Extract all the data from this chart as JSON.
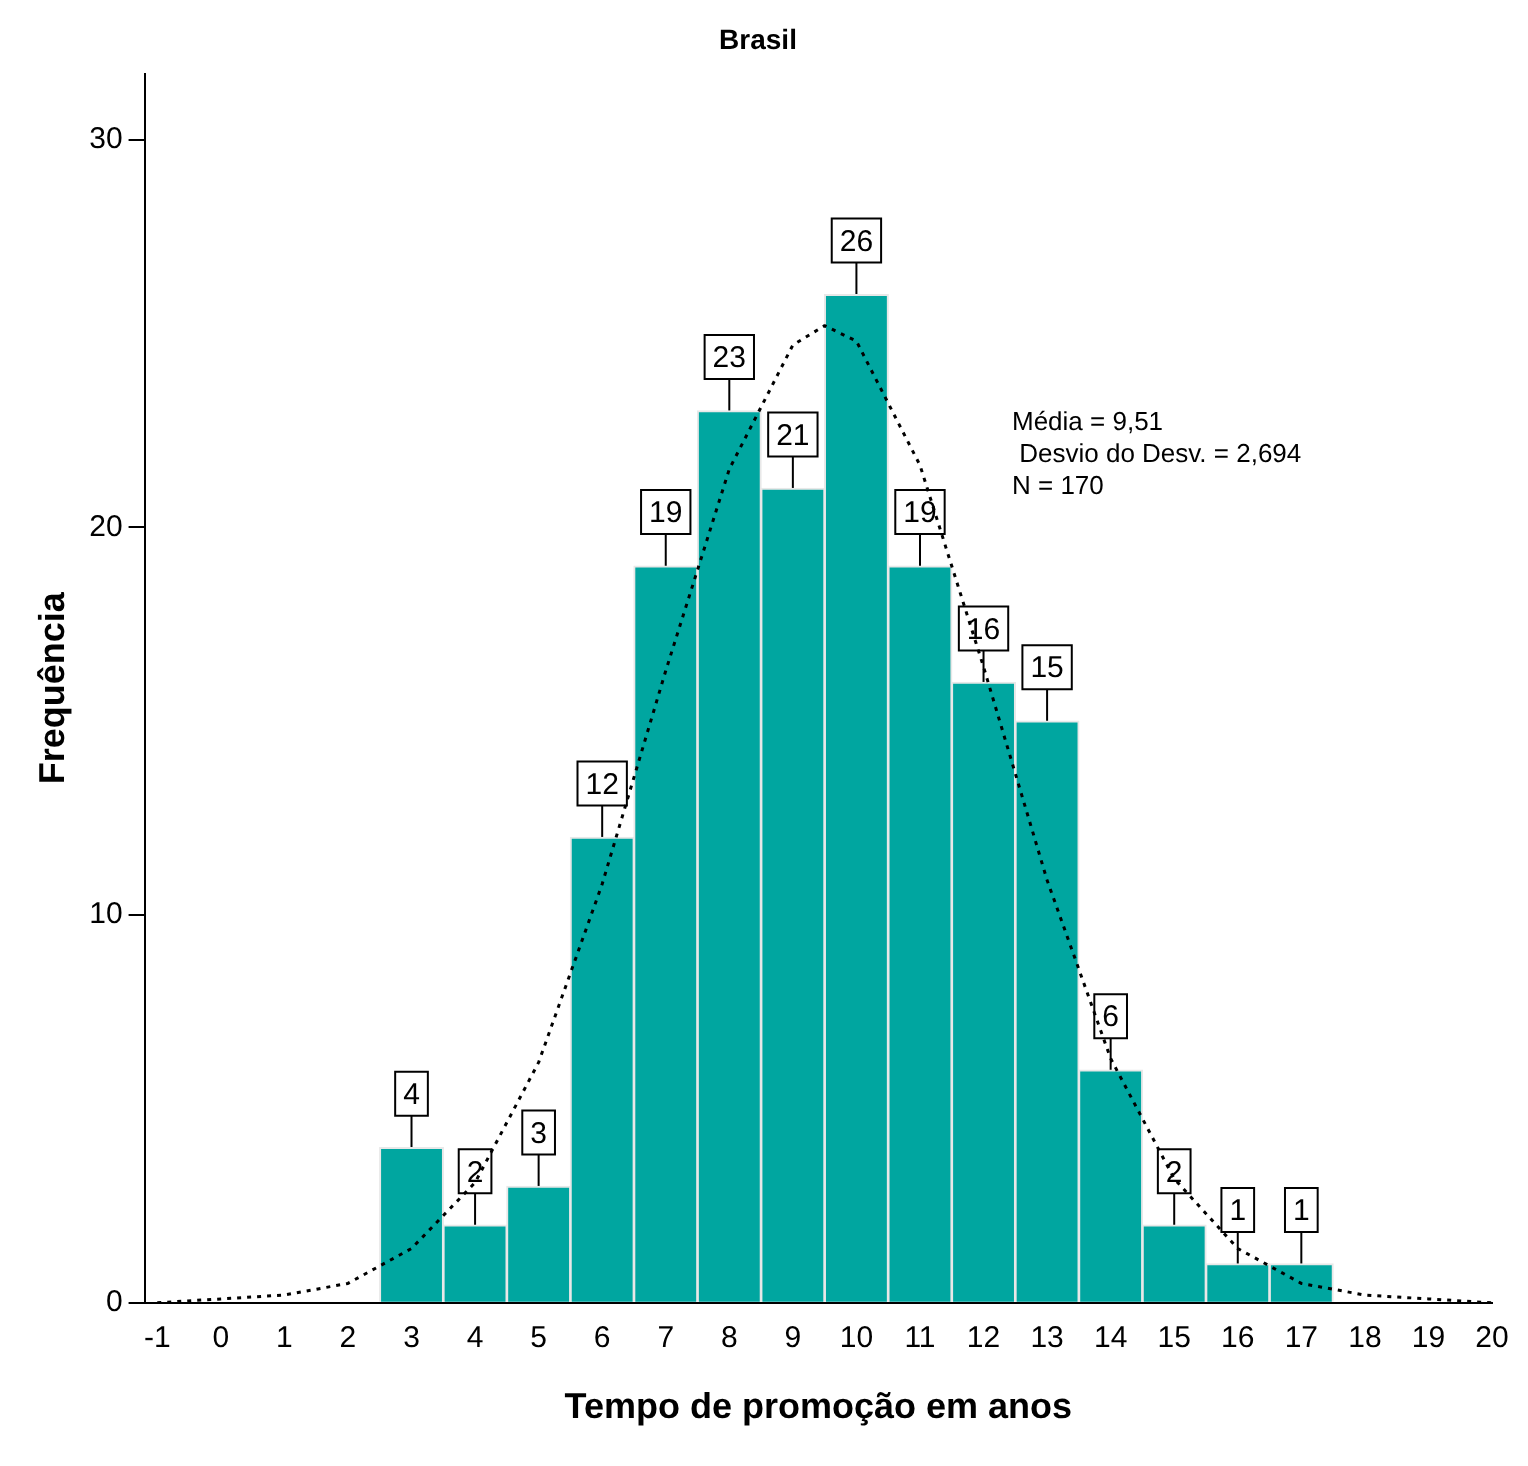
{
  "chart_data": {
    "type": "histogram",
    "title": "Brasil",
    "xlabel": "Tempo de promoção em anos",
    "ylabel": "Frequência",
    "bins": [
      2.5,
      3.5,
      4.5,
      5.5,
      6.5,
      7.5,
      8.5,
      9.5,
      10.5,
      11.5,
      12.5,
      13.5,
      14.5,
      15.5,
      16.5,
      17.5
    ],
    "series": [
      {
        "color": "#00a6a0",
        "values": [
          4,
          2,
          3,
          12,
          19,
          23,
          21,
          26,
          19,
          16,
          15,
          6,
          2,
          1,
          1
        ],
        "value_labels": [
          "4",
          "2",
          "3",
          "12",
          "19",
          "23",
          "21",
          "26",
          "19",
          "16",
          "15",
          "6",
          "2",
          "1",
          "1"
        ]
      },
      {
        "type": "line",
        "color": "#000000",
        "line_style": "dotted",
        "marker": "none",
        "x": [
          -1,
          0,
          1,
          2,
          3,
          4,
          5,
          6,
          7,
          8,
          9,
          9.5,
          10,
          11,
          12,
          13,
          14,
          15,
          16,
          17,
          18,
          19,
          20
        ],
        "values": [
          0,
          0.1,
          0.2,
          0.5,
          1.4,
          3.1,
          6.2,
          10.8,
          16.3,
          21.5,
          24.7,
          25.2,
          24.8,
          21.6,
          16.4,
          10.9,
          6.3,
          3.2,
          1.4,
          0.5,
          0.2,
          0.1,
          0
        ]
      }
    ],
    "xlim": [
      -1.2,
      20
    ],
    "xticks": [
      -1,
      0,
      1,
      2,
      3,
      4,
      5,
      6,
      7,
      8,
      9,
      10,
      11,
      12,
      13,
      14,
      15,
      16,
      17,
      18,
      19,
      20
    ],
    "ylim": [
      0,
      31.7
    ],
    "yticks": [
      0,
      10,
      20,
      30
    ],
    "grid": false,
    "legend": false,
    "annotations": [
      "Média = 9,51",
      " Desvio do Desv. = 2,694",
      "N = 170"
    ]
  }
}
